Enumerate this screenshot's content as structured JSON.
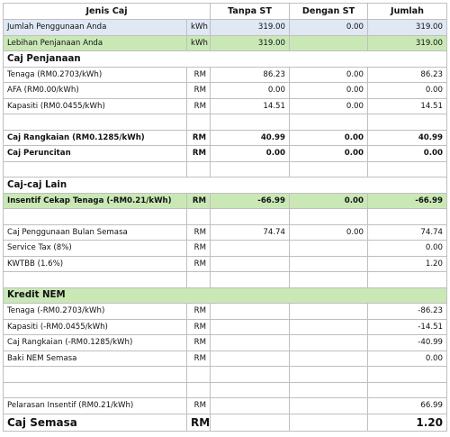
{
  "header": {
    "desc": "Jenis Caj",
    "col1": "Tanpa ST",
    "col2": "Dengan ST",
    "col3": "Jumlah"
  },
  "rows": {
    "usage": {
      "desc": "Jumlah Penggunaan Anda",
      "unit": "kWh",
      "c1": "319.00",
      "c2": "0.00",
      "c3": "319.00"
    },
    "export": {
      "desc": "Lebihan Penjanaan Anda",
      "unit": "kWh",
      "c1": "319.00",
      "c2": "",
      "c3": "319.00"
    },
    "sec_gen": {
      "desc": "Caj Penjanaan"
    },
    "tenaga": {
      "desc": "Tenaga (RM0.2703/kWh)",
      "unit": "RM",
      "c1": "86.23",
      "c2": "0.00",
      "c3": "86.23"
    },
    "afa": {
      "desc": "AFA (RM0.00/kWh)",
      "unit": "RM",
      "c1": "0.00",
      "c2": "0.00",
      "c3": "0.00"
    },
    "kapasiti": {
      "desc": "Kapasiti (RM0.0455/kWh)",
      "unit": "RM",
      "c1": "14.51",
      "c2": "0.00",
      "c3": "14.51"
    },
    "rangkaian": {
      "desc": "Caj Rangkaian (RM0.1285/kWh)",
      "unit": "RM",
      "c1": "40.99",
      "c2": "0.00",
      "c3": "40.99"
    },
    "peruncitan": {
      "desc": "Caj Peruncitan",
      "unit": "RM",
      "c1": "0.00",
      "c2": "0.00",
      "c3": "0.00"
    },
    "sec_lain": {
      "desc": "Caj-caj Lain"
    },
    "insentif": {
      "desc": "Insentif Cekap Tenaga (-RM0.21/kWh)",
      "unit": "RM",
      "c1": "-66.99",
      "c2": "0.00",
      "c3": "-66.99"
    },
    "bulan": {
      "desc": "Caj Penggunaan Bulan Semasa",
      "unit": "RM",
      "c1": "74.74",
      "c2": "0.00",
      "c3": "74.74"
    },
    "service_tax": {
      "desc": "Service Tax (8%)",
      "unit": "RM",
      "c1": "",
      "c2": "",
      "c3": "0.00"
    },
    "kwtbb": {
      "desc": "KWTBB (1.6%)",
      "unit": "RM",
      "c1": "",
      "c2": "",
      "c3": "1.20"
    },
    "sec_nem": {
      "desc": "Kredit NEM"
    },
    "nem_tenaga": {
      "desc": "Tenaga (-RM0.2703/kWh)",
      "unit": "RM",
      "c1": "",
      "c2": "",
      "c3": "-86.23"
    },
    "nem_kapasiti": {
      "desc": "Kapasiti (-RM0.0455/kWh)",
      "unit": "RM",
      "c1": "",
      "c2": "",
      "c3": "-14.51"
    },
    "nem_rangkaian": {
      "desc": "Caj Rangkaian (-RM0.1285/kWh)",
      "unit": "RM",
      "c1": "",
      "c2": "",
      "c3": "-40.99"
    },
    "baki_nem": {
      "desc": "Baki NEM Semasa",
      "unit": "RM",
      "c1": "",
      "c2": "",
      "c3": "0.00"
    },
    "pelarasan": {
      "desc": "Pelarasan Insentif (RM0.21/kWh)",
      "unit": "RM",
      "c1": "",
      "c2": "",
      "c3": "66.99"
    },
    "semasa": {
      "desc": "Caj Semasa",
      "unit": "RM",
      "c1": "",
      "c2": "",
      "c3": "1.20"
    }
  },
  "colors": {
    "header_blue": "#dfe8f3",
    "highlight_green": "#c9e8b6",
    "grid": "#bfbfbf"
  }
}
